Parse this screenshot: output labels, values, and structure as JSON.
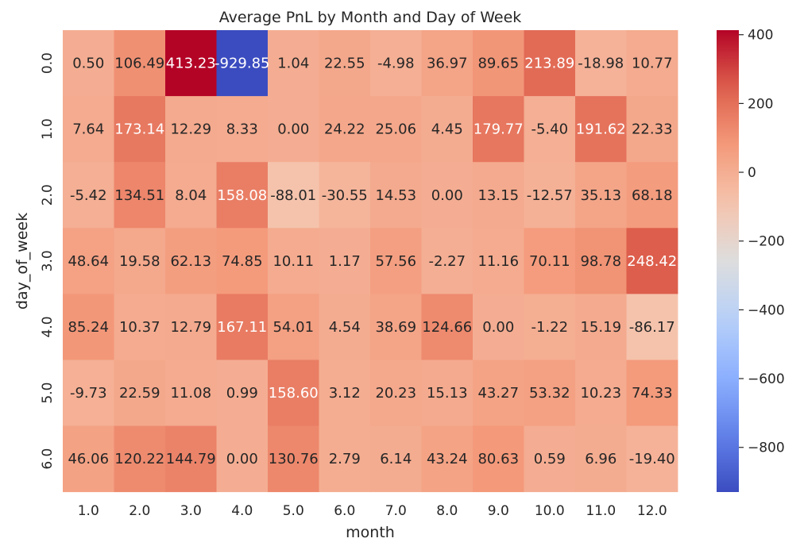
{
  "chart_data": {
    "type": "heatmap",
    "title": "Average PnL by Month and Day of Week",
    "xlabel": "month",
    "ylabel": "day_of_week",
    "x_categories": [
      "1.0",
      "2.0",
      "3.0",
      "4.0",
      "5.0",
      "6.0",
      "7.0",
      "8.0",
      "9.0",
      "10.0",
      "11.0",
      "12.0"
    ],
    "y_categories": [
      "0.0",
      "1.0",
      "2.0",
      "3.0",
      "4.0",
      "5.0",
      "6.0"
    ],
    "values": [
      [
        0.5,
        106.49,
        413.23,
        -929.85,
        1.04,
        22.55,
        -4.98,
        36.97,
        89.65,
        213.89,
        -18.98,
        10.77
      ],
      [
        7.64,
        173.14,
        12.29,
        8.33,
        0.0,
        24.22,
        25.06,
        4.45,
        179.77,
        -5.4,
        191.62,
        22.33
      ],
      [
        -5.42,
        134.51,
        8.04,
        158.08,
        -88.01,
        -30.55,
        14.53,
        0.0,
        13.15,
        -12.57,
        35.13,
        68.18
      ],
      [
        48.64,
        19.58,
        62.13,
        74.85,
        10.11,
        1.17,
        57.56,
        -2.27,
        11.16,
        70.11,
        98.78,
        248.42
      ],
      [
        85.24,
        10.37,
        12.79,
        167.11,
        54.01,
        4.54,
        38.69,
        124.66,
        0.0,
        -1.22,
        15.19,
        -86.17
      ],
      [
        -9.73,
        22.59,
        11.08,
        0.99,
        158.6,
        3.12,
        20.23,
        15.13,
        43.27,
        53.32,
        10.23,
        74.33
      ],
      [
        46.06,
        120.22,
        144.79,
        0.0,
        130.76,
        2.79,
        6.14,
        43.24,
        80.63,
        0.59,
        6.96,
        -19.4
      ]
    ],
    "value_labels": [
      [
        "0.50",
        "106.49",
        "413.23",
        "-929.85",
        "1.04",
        "22.55",
        "-4.98",
        "36.97",
        "89.65",
        "213.89",
        "-18.98",
        "10.77"
      ],
      [
        "7.64",
        "173.14",
        "12.29",
        "8.33",
        "0.00",
        "24.22",
        "25.06",
        "4.45",
        "179.77",
        "-5.40",
        "191.62",
        "22.33"
      ],
      [
        "-5.42",
        "134.51",
        "8.04",
        "158.08",
        "-88.01",
        "-30.55",
        "14.53",
        "0.00",
        "13.15",
        "-12.57",
        "35.13",
        "68.18"
      ],
      [
        "48.64",
        "19.58",
        "62.13",
        "74.85",
        "10.11",
        "1.17",
        "57.56",
        "-2.27",
        "11.16",
        "70.11",
        "98.78",
        "248.42"
      ],
      [
        "85.24",
        "10.37",
        "12.79",
        "167.11",
        "54.01",
        "4.54",
        "38.69",
        "124.66",
        "0.00",
        "-1.22",
        "15.19",
        "-86.17"
      ],
      [
        "-9.73",
        "22.59",
        "11.08",
        "0.99",
        "158.60",
        "3.12",
        "20.23",
        "15.13",
        "43.27",
        "53.32",
        "10.23",
        "74.33"
      ],
      [
        "46.06",
        "120.22",
        "144.79",
        "0.00",
        "130.76",
        "2.79",
        "6.14",
        "43.24",
        "80.63",
        "0.59",
        "6.96",
        "-19.40"
      ]
    ],
    "colormap": "coolwarm",
    "colorbar": {
      "min": -929.85,
      "max": 413.23,
      "ticks": [
        400,
        200,
        0,
        -200,
        -400,
        -600,
        -800
      ],
      "tick_labels": [
        "400",
        "200",
        "0",
        "−200",
        "−400",
        "−600",
        "−800"
      ]
    },
    "grid": false,
    "legend": "colorbar-right"
  }
}
